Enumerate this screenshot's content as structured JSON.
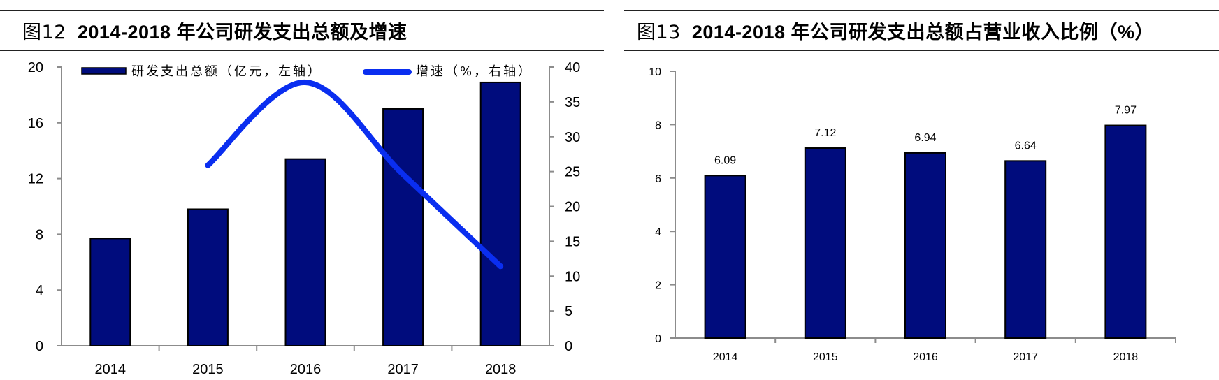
{
  "figures": [
    {
      "number_label": "图12",
      "title_text": "2014-2018 年公司研发支出总额及增速"
    },
    {
      "number_label": "图13",
      "title_text": "2014-2018 年公司研发支出总额占营业收入比例（%）"
    }
  ],
  "colors": {
    "bar_fill": "#000C7D",
    "bar_border": "#000000",
    "line": "#0A2EF0",
    "axis": "#8c8c8c",
    "rule": "#222222"
  },
  "chart_data": [
    {
      "type": "bar+line",
      "title": "图12 2014-2018 年公司研发支出总额及增速",
      "categories": [
        "2014",
        "2015",
        "2016",
        "2017",
        "2018"
      ],
      "series": [
        {
          "name": "研发支出总额（亿元，左轴）",
          "type": "bar",
          "axis": "left",
          "values": [
            7.7,
            9.8,
            13.4,
            17.0,
            18.9
          ]
        },
        {
          "name": "增速（%，右轴）",
          "type": "line",
          "axis": "right",
          "values": [
            null,
            25.9,
            37.8,
            24.6,
            11.4
          ]
        }
      ],
      "left_axis": {
        "range": [
          0,
          20
        ],
        "ticks": [
          "0",
          "4",
          "8",
          "12",
          "16",
          "20"
        ]
      },
      "right_axis": {
        "range": [
          0,
          40
        ],
        "ticks": [
          "0",
          "5",
          "10",
          "15",
          "20",
          "25",
          "30",
          "35",
          "40"
        ]
      },
      "legend": [
        "研发支出总额（亿元，左轴）",
        "增速（%，右轴）"
      ],
      "legend_position": "top",
      "grid": false,
      "xlabel": "",
      "ylabel": ""
    },
    {
      "type": "bar",
      "title": "图13 2014-2018 年公司研发支出总额占营业收入比例（%）",
      "categories": [
        "2014",
        "2015",
        "2016",
        "2017",
        "2018"
      ],
      "values": [
        6.09,
        7.12,
        6.94,
        6.64,
        7.97
      ],
      "data_labels": [
        "6.09",
        "7.12",
        "6.94",
        "6.64",
        "7.97"
      ],
      "ylim": [
        0,
        10
      ],
      "yticks": [
        "0",
        "2",
        "4",
        "6",
        "8",
        "10"
      ],
      "grid": false,
      "xlabel": "",
      "ylabel": ""
    }
  ]
}
